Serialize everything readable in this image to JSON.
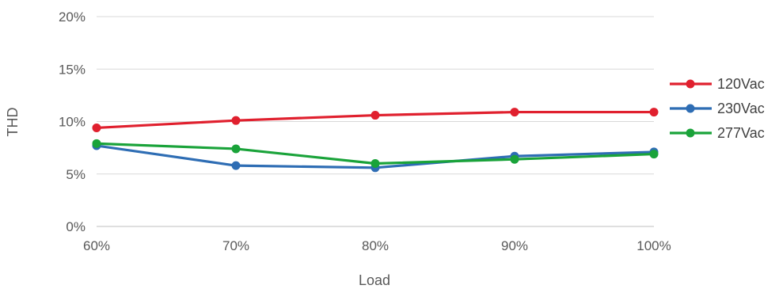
{
  "chart_data": {
    "type": "line",
    "title": "",
    "xlabel": "Load",
    "ylabel": "THD",
    "categories": [
      "60%",
      "70%",
      "80%",
      "90%",
      "100%"
    ],
    "x": [
      60,
      70,
      80,
      90,
      100
    ],
    "ylim": [
      0,
      20
    ],
    "yticks": [
      0,
      5,
      10,
      15,
      20
    ],
    "ytick_labels": [
      "0%",
      "5%",
      "10%",
      "15%",
      "20%"
    ],
    "grid": "horizontal",
    "legend": "right",
    "series": [
      {
        "name": "120Vac",
        "color": "#e0202e",
        "values": [
          9.4,
          10.1,
          10.6,
          10.9,
          10.9
        ]
      },
      {
        "name": "230Vac",
        "color": "#2e6db4",
        "values": [
          7.7,
          5.8,
          5.6,
          6.7,
          7.1
        ]
      },
      {
        "name": "277Vac",
        "color": "#1aa33a",
        "values": [
          7.9,
          7.4,
          6.0,
          6.4,
          6.9
        ]
      }
    ]
  }
}
